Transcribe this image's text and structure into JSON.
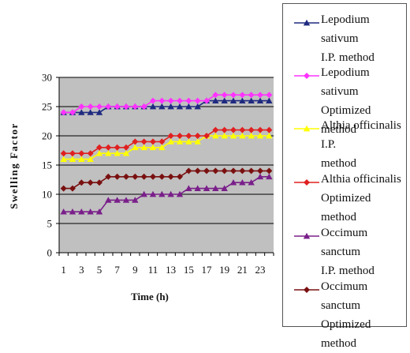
{
  "chart_data": {
    "type": "line",
    "title": "",
    "xlabel": "Time (h)",
    "ylabel": "Swelling Factor",
    "x": [
      1,
      2,
      3,
      4,
      5,
      6,
      7,
      8,
      9,
      10,
      11,
      12,
      13,
      14,
      15,
      16,
      17,
      18,
      19,
      20,
      21,
      22,
      23,
      24
    ],
    "xticks": [
      1,
      3,
      5,
      7,
      9,
      11,
      13,
      15,
      17,
      19,
      21,
      23
    ],
    "ylim": [
      0,
      30
    ],
    "yticks": [
      0,
      5,
      10,
      15,
      20,
      25,
      30
    ],
    "grid": "horizontal",
    "plot_background": "#c0c0c0",
    "legend": "right",
    "series": [
      {
        "name": "Lepodium sativum I.P. method",
        "color": "#1f2a80",
        "marker": "triangle",
        "values": [
          24,
          24,
          24,
          24,
          24,
          25,
          25,
          25,
          25,
          25,
          25,
          25,
          25,
          25,
          25,
          25,
          26,
          26,
          26,
          26,
          26,
          26,
          26,
          26
        ]
      },
      {
        "name": "Lepodium sativum Optimized method",
        "color": "#ff33ff",
        "marker": "diamond",
        "values": [
          24,
          24,
          25,
          25,
          25,
          25,
          25,
          25,
          25,
          25,
          26,
          26,
          26,
          26,
          26,
          26,
          26,
          27,
          27,
          27,
          27,
          27,
          27,
          27
        ]
      },
      {
        "name": "Althia officinalis I.P. method",
        "color": "#ffff00",
        "marker": "triangle",
        "values": [
          16,
          16,
          16,
          16,
          17,
          17,
          17,
          17,
          18,
          18,
          18,
          18,
          19,
          19,
          19,
          19,
          20,
          20,
          20,
          20,
          20,
          20,
          20,
          20
        ]
      },
      {
        "name": "Althia officinalis Optimized method",
        "color": "#e02020",
        "marker": "diamond",
        "values": [
          17,
          17,
          17,
          17,
          18,
          18,
          18,
          18,
          19,
          19,
          19,
          19,
          20,
          20,
          20,
          20,
          20,
          21,
          21,
          21,
          21,
          21,
          21,
          21
        ]
      },
      {
        "name": "Occimum sanctum I.P. method",
        "color": "#7a1f8a",
        "marker": "triangle",
        "values": [
          7,
          7,
          7,
          7,
          7,
          9,
          9,
          9,
          9,
          10,
          10,
          10,
          10,
          10,
          11,
          11,
          11,
          11,
          11,
          12,
          12,
          12,
          13,
          13
        ]
      },
      {
        "name": "Occimum sanctum Optimized method",
        "color": "#7a1010",
        "marker": "diamond",
        "values": [
          11,
          11,
          12,
          12,
          12,
          13,
          13,
          13,
          13,
          13,
          13,
          13,
          13,
          13,
          14,
          14,
          14,
          14,
          14,
          14,
          14,
          14,
          14,
          14
        ]
      }
    ]
  },
  "legend_labels": [
    [
      "Lepodium sativum",
      "I.P. method"
    ],
    [
      "Lepodium sativum",
      "Optimized method"
    ],
    [
      "Althia officinalis I.P.",
      "method"
    ],
    [
      "Althia officinalis",
      "Optimized method"
    ],
    [
      "Occimum sanctum",
      "I.P. method"
    ],
    [
      "Occimum sanctum",
      "Optimized method"
    ]
  ]
}
